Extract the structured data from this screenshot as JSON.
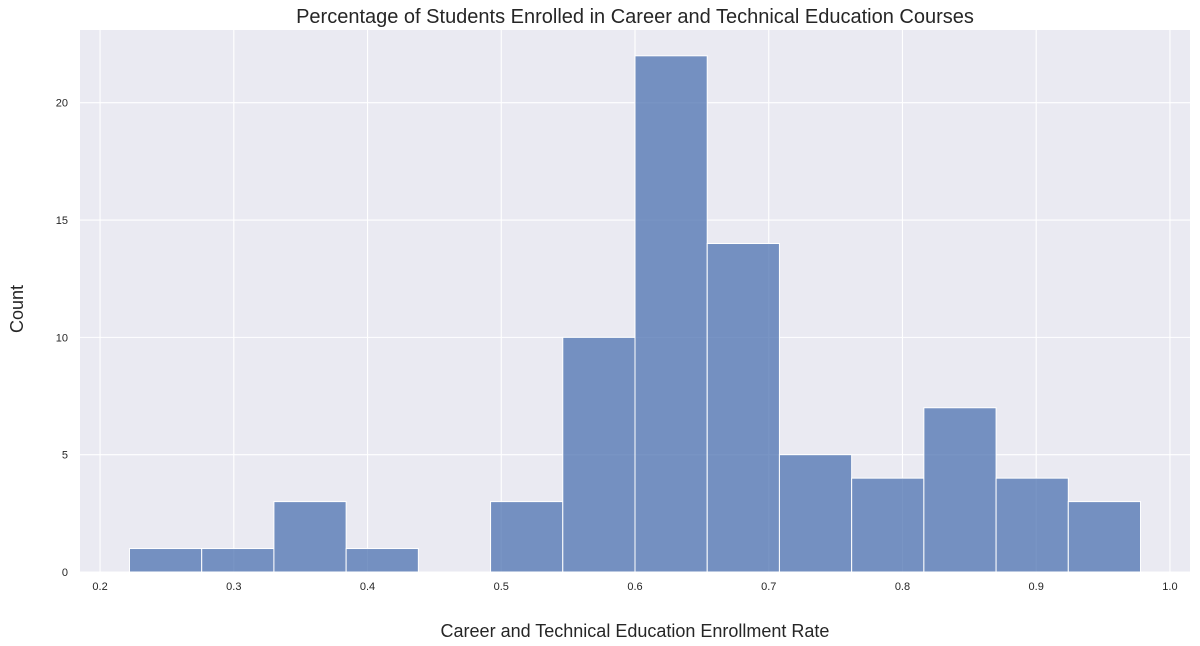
{
  "chart_data": {
    "type": "bar",
    "subtype": "histogram",
    "title": "Percentage of Students Enrolled in Career and Technical Education Courses",
    "xlabel": "Career and Technical Education Enrollment Rate",
    "ylabel": "Count",
    "xlim": [
      0.185,
      1.015
    ],
    "ylim": [
      0,
      23.1
    ],
    "xticks": [
      "0.2",
      "0.3",
      "0.4",
      "0.5",
      "0.6",
      "0.7",
      "0.8",
      "0.9",
      "1.0"
    ],
    "xtick_values": [
      0.2,
      0.3,
      0.4,
      0.5,
      0.6,
      0.7,
      0.8,
      0.9,
      1.0
    ],
    "yticks": [
      "0",
      "5",
      "10",
      "15",
      "20"
    ],
    "ytick_values": [
      0,
      5,
      10,
      15,
      20
    ],
    "bin_edges": [
      0.222,
      0.276,
      0.33,
      0.384,
      0.438,
      0.492,
      0.546,
      0.6,
      0.654,
      0.708,
      0.762,
      0.816,
      0.87,
      0.924,
      0.978
    ],
    "counts": [
      1,
      1,
      3,
      1,
      0,
      3,
      10,
      22,
      14,
      5,
      4,
      7,
      4,
      3
    ],
    "bar_color": "#4c72b0",
    "background_color": "#eaeaf2",
    "grid": true,
    "grid_color": "#ffffff"
  }
}
